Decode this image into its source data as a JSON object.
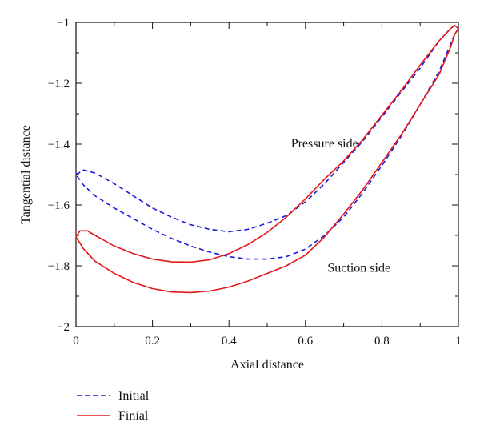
{
  "chart_data": {
    "type": "line",
    "xlabel": "Axial distance",
    "ylabel": "Tangential distance",
    "xlim": [
      0,
      1
    ],
    "ylim": [
      -2,
      -1
    ],
    "x_ticks": [
      0,
      0.2,
      0.4,
      0.6,
      0.8,
      1
    ],
    "x_tick_labels": [
      "0",
      "0.2",
      "0.4",
      "0.6",
      "0.8",
      "1"
    ],
    "y_ticks": [
      -2,
      -1.8,
      -1.6,
      -1.4,
      -1.2,
      -1
    ],
    "y_tick_labels": [
      "−2",
      "−1.8",
      "−1.6",
      "−1.4",
      "−1.2",
      "−1"
    ],
    "grid": false,
    "legend_position": "bottom-left, below plot",
    "annotations": [
      {
        "text": "Pressure side",
        "x": 0.65,
        "y": -1.41
      },
      {
        "text": "Suction side",
        "x": 0.74,
        "y": -1.82
      }
    ],
    "series": [
      {
        "name": "Initial",
        "color": "#1a1adc",
        "style": "dashed",
        "x": [
          0,
          0.02,
          0.05,
          0.1,
          0.15,
          0.2,
          0.25,
          0.3,
          0.35,
          0.4,
          0.45,
          0.5,
          0.55,
          0.6,
          0.65,
          0.7,
          0.75,
          0.8,
          0.85,
          0.9,
          0.95,
          0.98,
          0.99,
          1.0,
          0.99,
          0.98,
          0.95,
          0.9,
          0.85,
          0.8,
          0.75,
          0.7,
          0.65,
          0.6,
          0.55,
          0.5,
          0.45,
          0.4,
          0.35,
          0.3,
          0.25,
          0.2,
          0.15,
          0.1,
          0.05,
          0.02,
          0
        ],
        "y": [
          -1.5,
          -1.485,
          -1.495,
          -1.53,
          -1.57,
          -1.61,
          -1.64,
          -1.665,
          -1.68,
          -1.688,
          -1.68,
          -1.66,
          -1.635,
          -1.59,
          -1.53,
          -1.46,
          -1.39,
          -1.31,
          -1.23,
          -1.15,
          -1.06,
          -1.02,
          -1.01,
          -1.02,
          -1.04,
          -1.07,
          -1.16,
          -1.27,
          -1.375,
          -1.47,
          -1.56,
          -1.64,
          -1.7,
          -1.745,
          -1.77,
          -1.778,
          -1.778,
          -1.77,
          -1.755,
          -1.735,
          -1.71,
          -1.68,
          -1.645,
          -1.61,
          -1.57,
          -1.535,
          -1.5
        ]
      },
      {
        "name": "Finial",
        "color": "#e01818",
        "style": "solid",
        "x": [
          0,
          0.01,
          0.03,
          0.05,
          0.1,
          0.15,
          0.2,
          0.25,
          0.3,
          0.35,
          0.4,
          0.45,
          0.5,
          0.55,
          0.6,
          0.65,
          0.7,
          0.75,
          0.8,
          0.85,
          0.9,
          0.95,
          0.98,
          0.99,
          1.0,
          0.99,
          0.98,
          0.95,
          0.9,
          0.85,
          0.8,
          0.75,
          0.7,
          0.65,
          0.6,
          0.55,
          0.5,
          0.45,
          0.4,
          0.35,
          0.3,
          0.25,
          0.2,
          0.15,
          0.1,
          0.05,
          0.02,
          0
        ],
        "y": [
          -1.705,
          -1.685,
          -1.685,
          -1.7,
          -1.735,
          -1.76,
          -1.778,
          -1.787,
          -1.788,
          -1.78,
          -1.76,
          -1.73,
          -1.69,
          -1.64,
          -1.58,
          -1.515,
          -1.455,
          -1.385,
          -1.305,
          -1.225,
          -1.14,
          -1.06,
          -1.02,
          -1.01,
          -1.02,
          -1.04,
          -1.08,
          -1.17,
          -1.27,
          -1.37,
          -1.46,
          -1.55,
          -1.63,
          -1.705,
          -1.765,
          -1.8,
          -1.825,
          -1.85,
          -1.87,
          -1.883,
          -1.888,
          -1.886,
          -1.875,
          -1.855,
          -1.825,
          -1.785,
          -1.745,
          -1.705
        ]
      }
    ]
  }
}
